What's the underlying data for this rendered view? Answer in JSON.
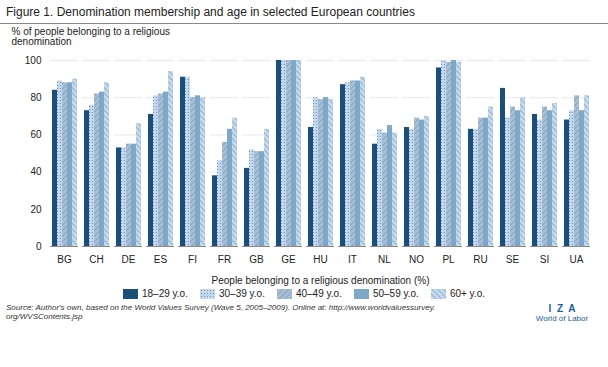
{
  "chart_data": {
    "type": "bar",
    "title": "Figure 1. Denomination membership and age in selected European countries",
    "xlabel": "People belonging to a religious denomination (%)",
    "ylabel": "% of people belonging to a religious\ndenomination",
    "categories": [
      "BG",
      "CH",
      "DE",
      "ES",
      "FI",
      "FR",
      "GB",
      "GE",
      "HU",
      "IT",
      "NL",
      "NO",
      "PL",
      "RU",
      "SE",
      "SI",
      "UA"
    ],
    "series": [
      {
        "name": "18–29 y.o.",
        "color": "#1A4F7A",
        "values": [
          84,
          73,
          53,
          71,
          91,
          38,
          42,
          100,
          64,
          87,
          55,
          64,
          96,
          63,
          85,
          71,
          68
        ]
      },
      {
        "name": "30–39 y.o.",
        "color": "#C5D9EE",
        "values": [
          89,
          76,
          53,
          81,
          91,
          46,
          52,
          100,
          80,
          88,
          63,
          63,
          100,
          63,
          69,
          68,
          73
        ]
      },
      {
        "name": "40–49 y.o.",
        "color": "#AABFD6",
        "values": [
          88,
          82,
          55,
          82,
          80,
          56,
          51,
          100,
          79,
          89,
          61,
          69,
          99,
          69,
          75,
          75,
          81
        ]
      },
      {
        "name": "50–59 y.o.",
        "color": "#7FA8C8",
        "values": [
          88,
          83,
          55,
          83,
          81,
          63,
          51,
          100,
          80,
          89,
          65,
          68,
          100,
          69,
          73,
          73,
          73
        ]
      },
      {
        "name": "60+ y.o.",
        "color": "#C5D9EE",
        "values": [
          90,
          88,
          66,
          94,
          80,
          69,
          63,
          100,
          79,
          91,
          61,
          70,
          99,
          75,
          80,
          77,
          81
        ]
      }
    ],
    "ylim": [
      0,
      100
    ],
    "yticks": [
      0,
      20,
      40,
      60,
      80,
      100
    ],
    "grid": true,
    "legend": "bottom",
    "caption": "Source: Author's own, based on the World Values Survey (Wave 5, 2005–2009). Online at: http://www.worldvaluessurvey.\norg/WVSContents.jsp",
    "annotations": [
      "I  Z  A",
      "World of Labor"
    ]
  }
}
